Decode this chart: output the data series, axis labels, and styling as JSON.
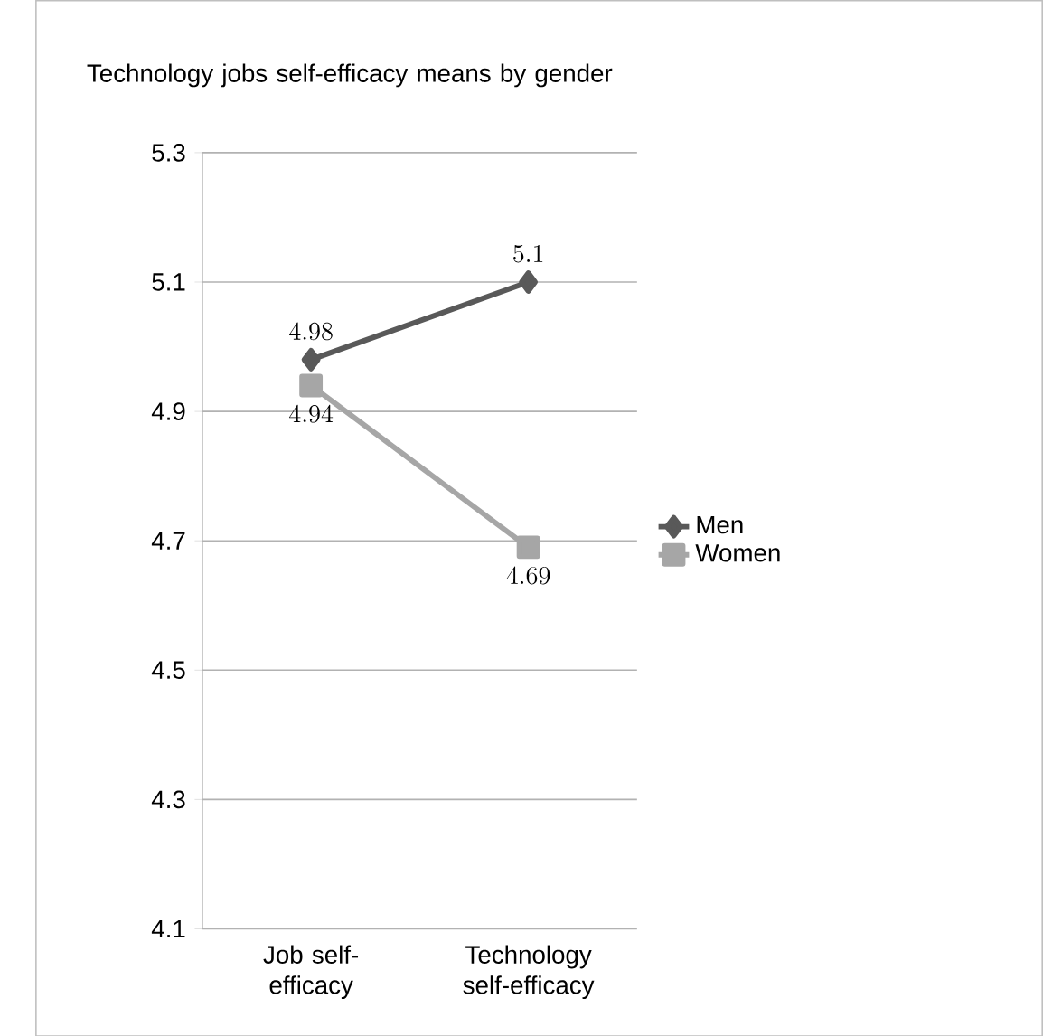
{
  "chart_data": {
    "type": "line",
    "title": "Technology jobs self-efficacy means by gender",
    "categories": [
      "Job self-efficacy",
      "Technology self-efficacy"
    ],
    "series": [
      {
        "name": "Men",
        "color": "#595959",
        "values": [
          4.98,
          5.1
        ],
        "marker": "diamond"
      },
      {
        "name": "Women",
        "color": "#a6a6a6",
        "values": [
          4.94,
          4.69
        ],
        "marker": "square"
      }
    ],
    "ylim": [
      4.1,
      5.3
    ],
    "yticks": [
      4.1,
      4.3,
      4.5,
      4.7,
      4.9,
      5.1,
      5.3
    ],
    "grid": "y",
    "legend": "right",
    "data_labels": true,
    "line_style": "solid"
  }
}
